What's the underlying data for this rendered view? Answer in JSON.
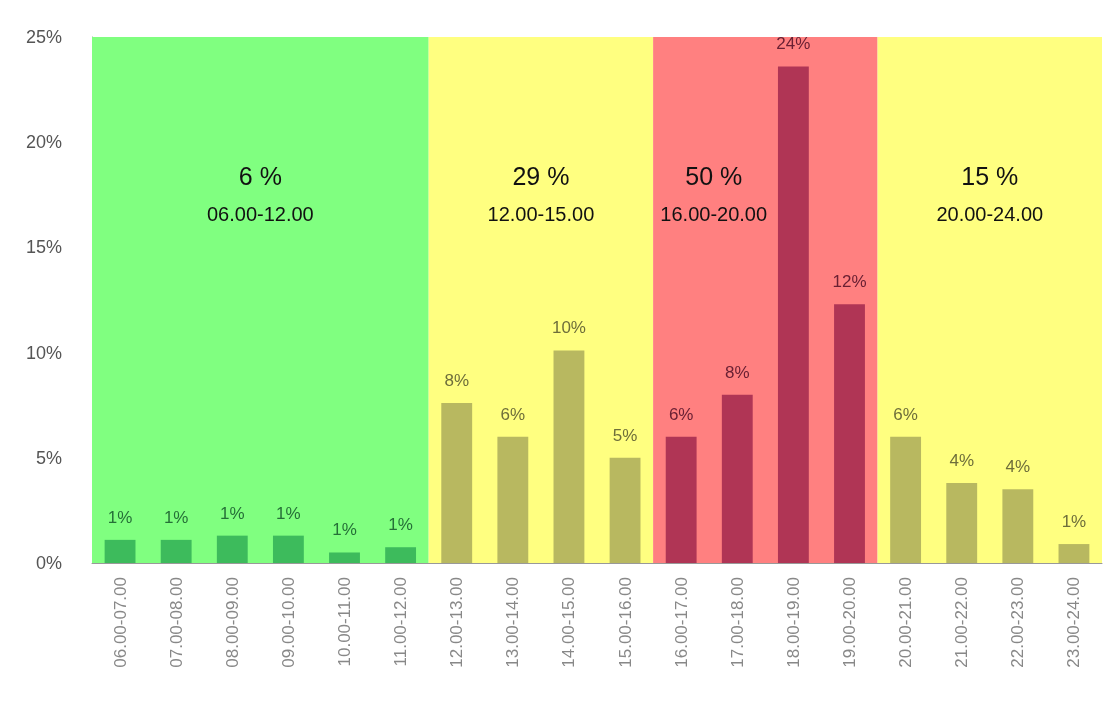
{
  "chart_data": {
    "type": "bar",
    "categories": [
      "06.00-07.00",
      "07.00-08.00",
      "08.00-09.00",
      "09.00-10.00",
      "10.00-11.00",
      "11.00-12.00",
      "12.00-13.00",
      "13.00-14.00",
      "14.00-15.00",
      "15.00-16.00",
      "16.00-17.00",
      "17.00-18.00",
      "18.00-19.00",
      "19.00-20.00",
      "20.00-21.00",
      "21.00-22.00",
      "22.00-23.00",
      "23.00-24.00"
    ],
    "values": [
      1.1,
      1.1,
      1.3,
      1.3,
      0.5,
      0.75,
      7.6,
      6.0,
      10.1,
      5.0,
      6.0,
      8.0,
      23.6,
      12.3,
      6.0,
      3.8,
      3.5,
      0.9
    ],
    "value_labels": [
      "1%",
      "1%",
      "1%",
      "1%",
      "1%",
      "1%",
      "8%",
      "6%",
      "10%",
      "5%",
      "6%",
      "8%",
      "24%",
      "12%",
      "6%",
      "4%",
      "4%",
      "1%"
    ],
    "colors": [
      "#3dbb5c",
      "#3dbb5c",
      "#3dbb5c",
      "#3dbb5c",
      "#3dbb5c",
      "#3dbb5c",
      "#b8b860",
      "#b8b860",
      "#b8b860",
      "#b8b860",
      "#b03555",
      "#b03555",
      "#b03555",
      "#b03555",
      "#b8b860",
      "#b8b860",
      "#b8b860",
      "#b8b860"
    ],
    "ylim": [
      0,
      25
    ],
    "yticks": [
      {
        "value": 0,
        "label": "0%"
      },
      {
        "value": 5,
        "label": "5%"
      },
      {
        "value": 10,
        "label": "10%"
      },
      {
        "value": 15,
        "label": "15%"
      },
      {
        "value": 20,
        "label": "20%"
      },
      {
        "value": 25,
        "label": "25%"
      }
    ],
    "grid": false,
    "bands": [
      {
        "axis": "x",
        "from": "06.00-07.00",
        "to": "11.00-12.00",
        "label": "6 %\n06.00-12.00",
        "color": "#80ff80"
      },
      {
        "axis": "x",
        "from": "12.00-13.00",
        "to": "15.00-16.00",
        "label": "29 %\n12.00-15.00",
        "color": "#ffff80"
      },
      {
        "axis": "x",
        "from": "16.00-17.00",
        "to": "19.00-20.00",
        "label": "50 %\n16.00-20.00",
        "color": "#ff8080"
      },
      {
        "axis": "x",
        "from": "20.00-21.00",
        "to": "23.00-24.00",
        "label": "15 %\n20.00-24.00",
        "color": "#ffff80"
      }
    ]
  }
}
